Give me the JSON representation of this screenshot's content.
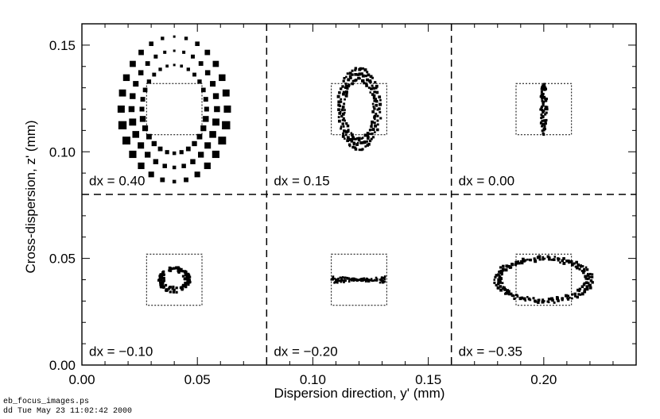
{
  "chart_data": {
    "type": "scatter",
    "title": "",
    "xlabel": "Dispersion direction, y' (mm)",
    "ylabel": "Cross-dispersion, z' (mm)",
    "xlim": [
      0.0,
      0.24
    ],
    "ylim": [
      0.0,
      0.16
    ],
    "x_ticks": [
      "0.00",
      "0.05",
      "0.10",
      "0.15",
      "0.20"
    ],
    "y_ticks": [
      "0.00",
      "0.05",
      "0.10",
      "0.15"
    ],
    "panel_dividers": {
      "x": [
        0.08,
        0.16
      ],
      "y": [
        0.08
      ]
    },
    "legend": "none",
    "grid": false,
    "panels": [
      {
        "label": "dx =  0.40",
        "center": [
          0.04,
          0.12
        ],
        "box": [
          0.028,
          0.052,
          0.108,
          0.132
        ],
        "spot": {
          "shape": "ring",
          "rx": 0.023,
          "ry": 0.034,
          "rings": 3,
          "ring_step": 0.0045
        }
      },
      {
        "label": "dx =  0.15",
        "center": [
          0.12,
          0.12
        ],
        "box": [
          0.108,
          0.132,
          0.108,
          0.132
        ],
        "spot": {
          "shape": "ring",
          "rx": 0.009,
          "ry": 0.019,
          "rings": 3,
          "ring_step": 0.0012
        }
      },
      {
        "label": "dx =  0.00",
        "center": [
          0.2,
          0.12
        ],
        "box": [
          0.188,
          0.212,
          0.108,
          0.132
        ],
        "spot": {
          "shape": "line-v",
          "rx": 0.0015,
          "ry": 0.012
        }
      },
      {
        "label": "dx = −0.10",
        "center": [
          0.04,
          0.04
        ],
        "box": [
          0.028,
          0.052,
          0.028,
          0.052
        ],
        "spot": {
          "shape": "blob",
          "rx": 0.007,
          "ry": 0.006
        }
      },
      {
        "label": "dx = −0.20",
        "center": [
          0.12,
          0.04
        ],
        "box": [
          0.108,
          0.132,
          0.028,
          0.052
        ],
        "spot": {
          "shape": "bowtie",
          "rx": 0.012,
          "ry": 0.0018
        }
      },
      {
        "label": "dx = −0.35",
        "center": [
          0.2,
          0.04
        ],
        "box": [
          0.188,
          0.212,
          0.028,
          0.052
        ],
        "spot": {
          "shape": "ring",
          "rx": 0.021,
          "ry": 0.0105,
          "rings": 3,
          "ring_step": 0.0012
        }
      }
    ]
  },
  "footer": {
    "line1": "eb_focus_images.ps",
    "line2": "dd Tue May 23 11:02:42 2000"
  },
  "colors": {
    "ink": "#000000",
    "background": "#ffffff"
  }
}
